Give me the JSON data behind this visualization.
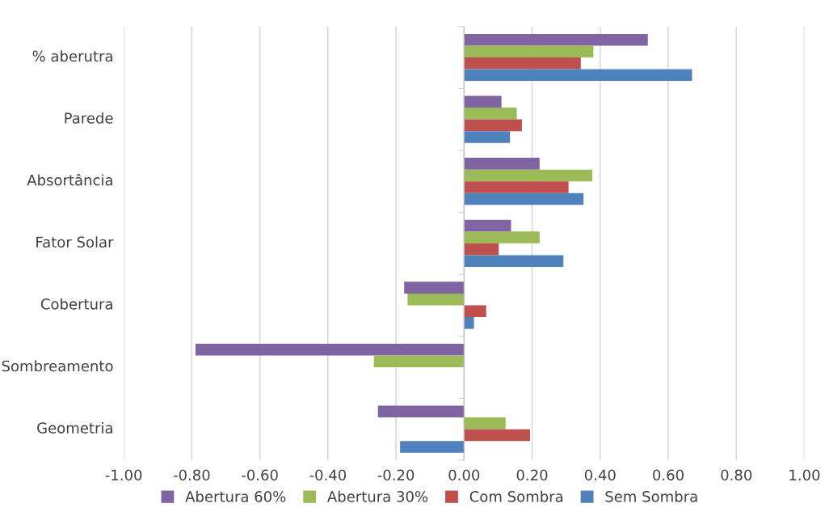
{
  "chart_data": {
    "type": "bar",
    "orientation": "horizontal",
    "categories": [
      "% aberutra",
      "Parede",
      "Absortância",
      "Fator Solar",
      "Cobertura",
      "Sombreamento",
      "Geometria"
    ],
    "series": [
      {
        "name": "Abertura 60%",
        "color": "#8064a2",
        "values": [
          0.54,
          0.11,
          0.222,
          0.138,
          -0.176,
          -0.789,
          -0.253
        ]
      },
      {
        "name": "Abertura 30%",
        "color": "#9bbb59",
        "values": [
          0.38,
          0.155,
          0.377,
          0.222,
          -0.166,
          -0.265,
          0.122
        ]
      },
      {
        "name": "Com Sombra",
        "color": "#c0504d",
        "values": [
          0.343,
          0.17,
          0.307,
          0.102,
          0.065,
          0,
          0.194
        ]
      },
      {
        "name": "Sem Sombra",
        "color": "#4f81bd",
        "values": [
          0.67,
          0.135,
          0.351,
          0.292,
          0.029,
          0,
          -0.188
        ]
      }
    ],
    "xlim": [
      -1.0,
      1.0
    ],
    "xticks": [
      {
        "value": -1.0,
        "label": "-1.00"
      },
      {
        "value": -0.8,
        "label": "-0.80"
      },
      {
        "value": -0.6,
        "label": "-0.60"
      },
      {
        "value": -0.4,
        "label": "-0.40"
      },
      {
        "value": -0.2,
        "label": "-0.20"
      },
      {
        "value": 0.0,
        "label": "0.00"
      },
      {
        "value": 0.2,
        "label": "0.20"
      },
      {
        "value": 0.4,
        "label": "0.40"
      },
      {
        "value": 0.6,
        "label": "0.60"
      },
      {
        "value": 0.8,
        "label": "0.80"
      },
      {
        "value": 1.0,
        "label": "1.00"
      }
    ],
    "grid": "x",
    "legend": "bottom"
  }
}
